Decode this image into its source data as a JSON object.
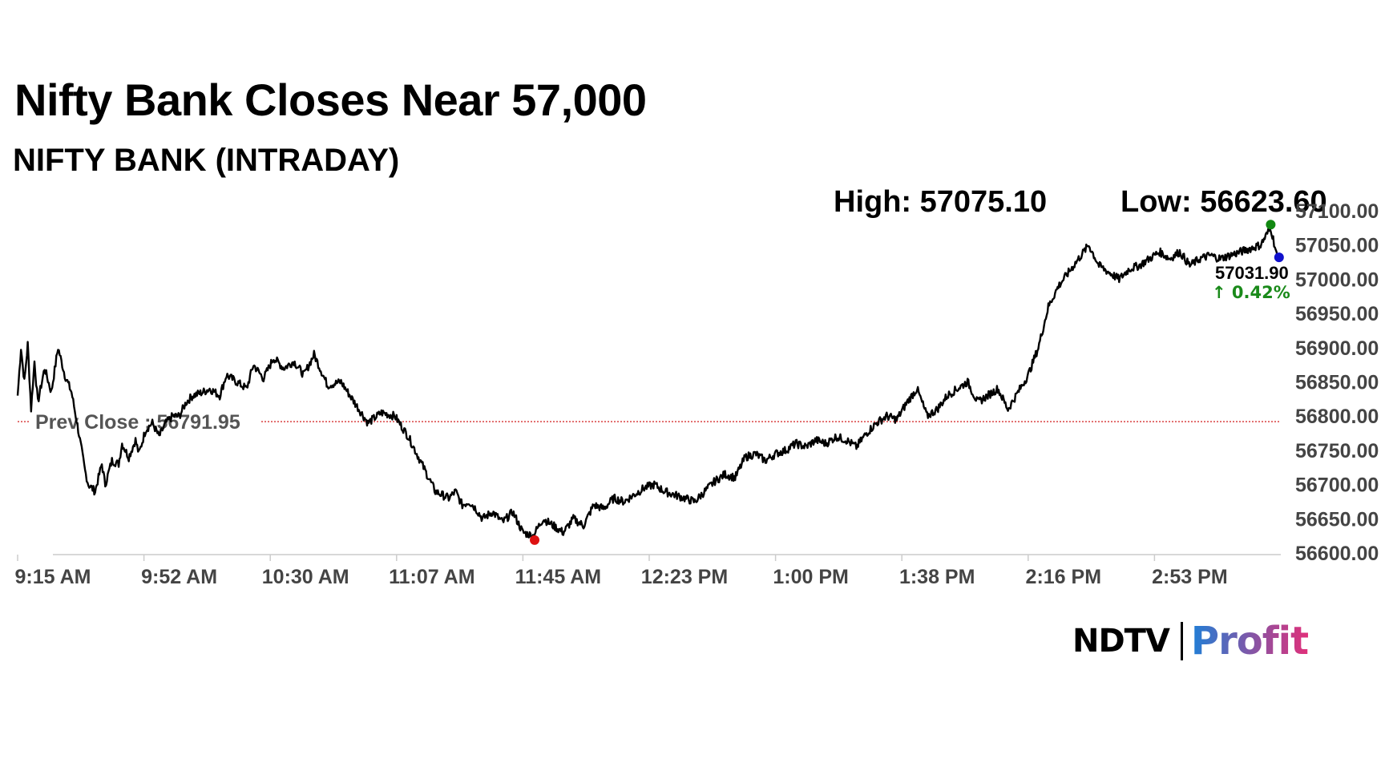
{
  "headline": "Nifty Bank Closes Near 57,000",
  "logo": {
    "name": "NDTV Profit",
    "part1": "NDTV",
    "part2": "Profit"
  },
  "colors": {
    "line": "#000000",
    "prev_close": "#cc0000",
    "high_marker": "#118811",
    "low_marker": "#dd1111",
    "last_marker": "#1111cc",
    "change": "#1a8a1a",
    "axis": "#cccccc",
    "logo_blue": "#1f7fd6",
    "logo_pink": "#e0307a"
  },
  "chart_data": {
    "type": "line",
    "title": "NIFTY BANK (INTRADAY)",
    "high_label": "High: 57075.10",
    "low_label": "Low: 56623.60",
    "high": 57075.1,
    "low": 56623.6,
    "prev_close": 56791.95,
    "prev_close_label": "Prev Close : 56791.95",
    "last": 57031.9,
    "last_label": "57031.90",
    "change_label": "↑ 0.42%",
    "ylim": [
      56600,
      57100
    ],
    "y_ticks": [
      "56600.00",
      "56650.00",
      "56700.00",
      "56750.00",
      "56800.00",
      "56850.00",
      "56900.00",
      "56950.00",
      "57000.00",
      "57050.00",
      "57100.00"
    ],
    "x_ticks": [
      "9:15 AM",
      "9:52 AM",
      "10:30 AM",
      "11:07 AM",
      "11:45 AM",
      "12:23 PM",
      "1:00 PM",
      "1:38 PM",
      "2:16 PM",
      "2:53 PM"
    ],
    "x_range_minutes": [
      0,
      375
    ],
    "grid": false,
    "series": [
      {
        "minutes": [
          0,
          1,
          2,
          3,
          4,
          5,
          6,
          8,
          10,
          12,
          14,
          16,
          18,
          20,
          21,
          23,
          25,
          26,
          28,
          30,
          31,
          33,
          35,
          36,
          38,
          40,
          42,
          44,
          46,
          48,
          50,
          52,
          55,
          57,
          60,
          62,
          65,
          68,
          70,
          73,
          76,
          79,
          82,
          85,
          88,
          92,
          96,
          100,
          104,
          108,
          112,
          116,
          120,
          124,
          128,
          130,
          132,
          134,
          136,
          138,
          141,
          144,
          147,
          150,
          153,
          156,
          159,
          162,
          165,
          168,
          171,
          174,
          177,
          180,
          183,
          186,
          189,
          192,
          195,
          198,
          201,
          204,
          207,
          210,
          213,
          216,
          219,
          222,
          225,
          228,
          231,
          234,
          237,
          240,
          243,
          246,
          249,
          252,
          255,
          258,
          261,
          264,
          267,
          270,
          273,
          276,
          279,
          282,
          285,
          288,
          291,
          294,
          297,
          300,
          303,
          306,
          309,
          312,
          315,
          318,
          321,
          324,
          327,
          330,
          333,
          336,
          339,
          342,
          345,
          348,
          351,
          354,
          357,
          360,
          363,
          366,
          369,
          372,
          374
        ],
        "values": [
          56830,
          56900,
          56850,
          56905,
          56810,
          56880,
          56820,
          56870,
          56835,
          56900,
          56860,
          56835,
          56780,
          56720,
          56700,
          56690,
          56730,
          56700,
          56735,
          56730,
          56760,
          56740,
          56765,
          56745,
          56780,
          56790,
          56770,
          56790,
          56800,
          56800,
          56820,
          56830,
          56835,
          56840,
          56830,
          56860,
          56850,
          56840,
          56875,
          56855,
          56885,
          56870,
          56880,
          56860,
          56890,
          56845,
          56850,
          56820,
          56790,
          56805,
          56800,
          56770,
          56730,
          56690,
          56680,
          56690,
          56670,
          56675,
          56665,
          56650,
          56660,
          56645,
          56660,
          56630,
          56625,
          56650,
          56640,
          56630,
          56650,
          56640,
          56670,
          56665,
          56680,
          56675,
          56685,
          56695,
          56700,
          56690,
          56685,
          56680,
          56675,
          56690,
          56705,
          56715,
          56710,
          56740,
          56745,
          56735,
          56745,
          56750,
          56760,
          56755,
          56765,
          56760,
          56770,
          56765,
          56755,
          56775,
          56790,
          56800,
          56795,
          56820,
          56840,
          56800,
          56810,
          56830,
          56840,
          56850,
          56820,
          56830,
          56840,
          56810,
          56835,
          56860,
          56900,
          56960,
          56990,
          57010,
          57030,
          57050,
          57020,
          57010,
          57000,
          57015,
          57020,
          57030,
          57040,
          57030,
          57040,
          57020,
          57030,
          57035,
          57030,
          57035,
          57040,
          57045,
          57050,
          57075,
          57031.9
        ]
      }
    ]
  }
}
